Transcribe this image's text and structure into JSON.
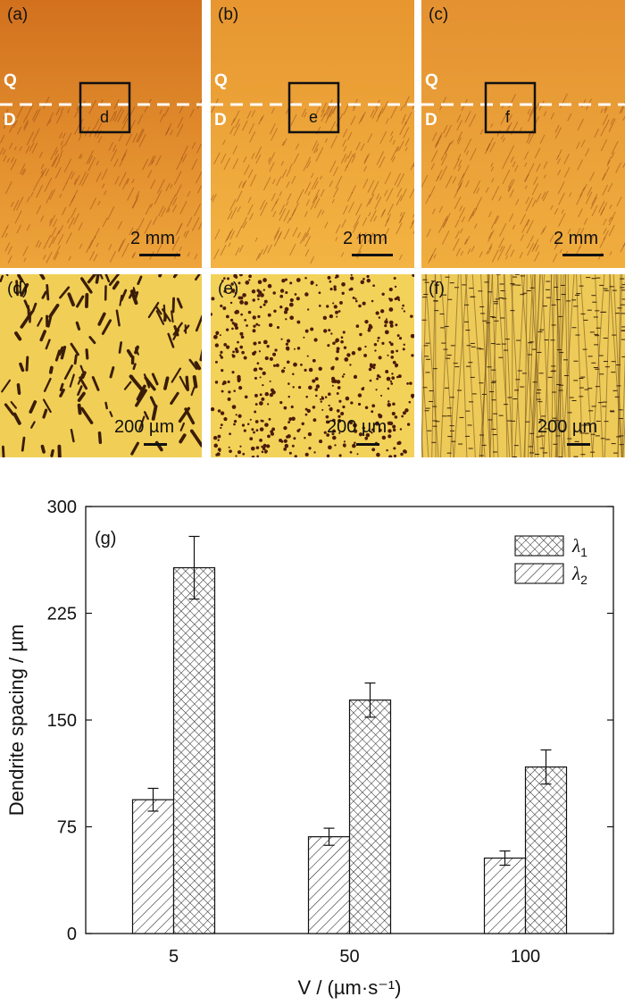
{
  "micrographs": {
    "top_panels": [
      {
        "label": "(a)",
        "box_label": "d",
        "scale": "2 mm",
        "q": "Q",
        "d": "D"
      },
      {
        "label": "(b)",
        "box_label": "e",
        "scale": "2 mm",
        "q": "Q",
        "d": "D"
      },
      {
        "label": "(c)",
        "box_label": "f",
        "scale": "2 mm",
        "q": "Q",
        "d": "D"
      }
    ],
    "bottom_panels": [
      {
        "label": "(d)",
        "scale": "200 µm"
      },
      {
        "label": "(e)",
        "scale": "200 µm"
      },
      {
        "label": "(f)",
        "scale": "200 µm"
      }
    ]
  },
  "chart_data": {
    "type": "bar",
    "panel_label": "(g)",
    "categories": [
      "5",
      "50",
      "100"
    ],
    "series": [
      {
        "name": "λ2",
        "values": [
          94,
          68,
          53
        ],
        "errors": [
          8,
          6,
          5
        ],
        "pattern": "hatch"
      },
      {
        "name": "λ1",
        "values": [
          257,
          164,
          117
        ],
        "errors": [
          22,
          12,
          12
        ],
        "pattern": "crosshatch"
      }
    ],
    "legend_order": [
      "λ1",
      "λ2"
    ],
    "legend_placement": "top-right",
    "xlabel": "V / (µm·s⁻¹)",
    "ylabel": "Dendrite spacing / µm",
    "ylim": [
      0,
      300
    ],
    "yticks": [
      0,
      75,
      150,
      225,
      300
    ],
    "grid": false
  }
}
